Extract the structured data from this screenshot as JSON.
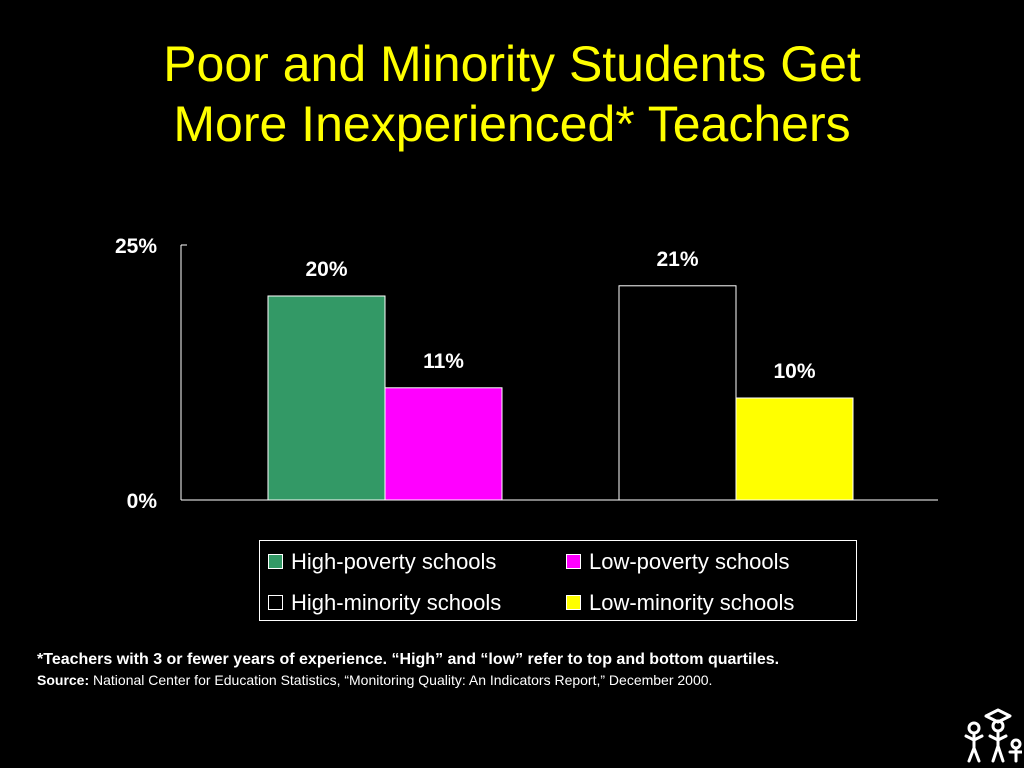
{
  "title": {
    "line1": "Poor and Minority Students Get",
    "line2": "More Inexperienced* Teachers"
  },
  "chart_data": {
    "type": "bar",
    "ylim": [
      0,
      25
    ],
    "yticks": [
      "25%",
      "0%"
    ],
    "grid": false,
    "legend_position": "bottom",
    "series": [
      {
        "name": "High-poverty schools",
        "value": 20,
        "label": "20%",
        "color": "#339966",
        "group": 0
      },
      {
        "name": "Low-poverty schools",
        "value": 11,
        "label": "11%",
        "color": "#ff00ff",
        "group": 0
      },
      {
        "name": "High-minority schools",
        "value": 21,
        "label": "21%",
        "color": "#000000",
        "group": 1
      },
      {
        "name": "Low-minority schools",
        "value": 10,
        "label": "10%",
        "color": "#ffff00",
        "group": 1
      }
    ]
  },
  "footnote": {
    "line1": "*Teachers with 3 or fewer years of experience.  “High” and “low” refer to top and bottom quartiles.",
    "source_label": "Source:",
    "source_text": " National Center for Education Statistics, “Monitoring Quality: An Indicators Report,” December 2000."
  },
  "logo_icon": "people-reading-icon"
}
